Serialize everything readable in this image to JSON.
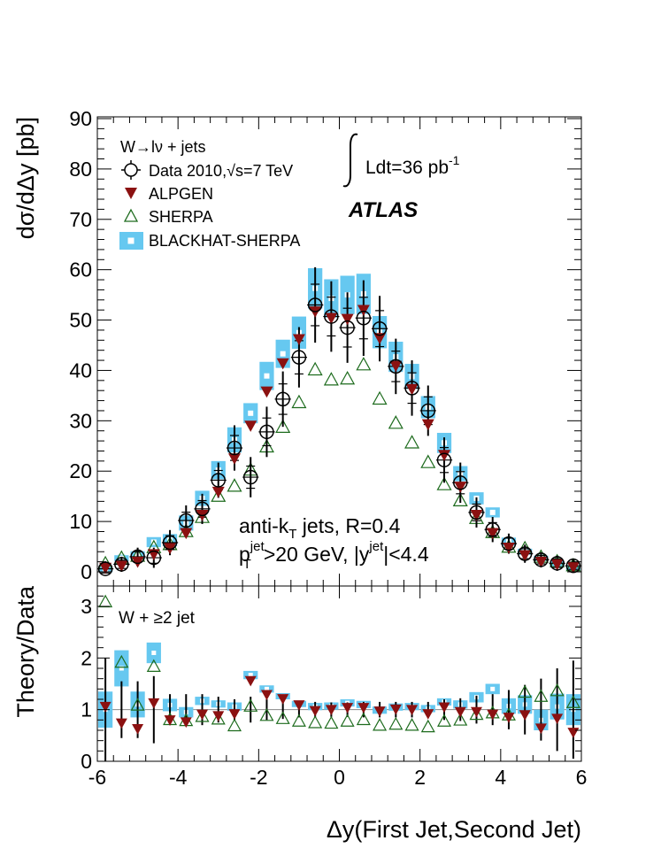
{
  "chart_data": [
    {
      "type": "scatter",
      "panel": "main",
      "ylabel": "dσ/dΔy [pb]",
      "xlim": [
        -6,
        6
      ],
      "ylim": [
        0,
        90
      ],
      "x_ticks": [
        "-6",
        "-4",
        "-2",
        "0",
        "2",
        "4",
        "6"
      ],
      "y_ticks": [
        "0",
        "10",
        "20",
        "30",
        "40",
        "50",
        "60",
        "70",
        "80",
        "90"
      ],
      "x": [
        -5.8,
        -5.4,
        -5.0,
        -4.6,
        -4.2,
        -3.8,
        -3.4,
        -3.0,
        -2.6,
        -2.2,
        -1.8,
        -1.4,
        -1.0,
        -0.6,
        -0.2,
        0.2,
        0.6,
        1.0,
        1.4,
        1.8,
        2.2,
        2.6,
        3.0,
        3.4,
        3.8,
        4.2,
        4.6,
        5.0,
        5.4,
        5.8
      ],
      "series": [
        {
          "name": "Data 2010,√s=7 TeV",
          "marker": "open-circle",
          "color": "#000000",
          "values": [
            0.6,
            1.5,
            3.0,
            2.8,
            5.8,
            10.2,
            12.5,
            18.2,
            24.6,
            18.8,
            27.8,
            34.3,
            42.6,
            53.0,
            50.7,
            48.5,
            50.4,
            48.3,
            40.8,
            36.5,
            32.0,
            22.2,
            17.7,
            11.8,
            8.4,
            5.6,
            3.6,
            2.4,
            1.7,
            1.2
          ],
          "errors": [
            1.5,
            1.5,
            1.8,
            2.0,
            2.5,
            3.0,
            3.0,
            3.5,
            4.5,
            4.0,
            5.0,
            5.5,
            6.0,
            7.5,
            7.0,
            7.0,
            7.5,
            6.5,
            5.5,
            5.5,
            5.0,
            4.5,
            4.0,
            3.0,
            2.5,
            2.0,
            1.8,
            1.5,
            1.5,
            1.3
          ]
        },
        {
          "name": "ALPGEN",
          "marker": "filled-triangle-down",
          "color": "#8b1111",
          "values": [
            0.7,
            1.1,
            1.9,
            3.4,
            4.6,
            7.6,
            11.2,
            15.8,
            22.4,
            28.9,
            35.7,
            41.3,
            46.1,
            51.6,
            50.3,
            50.1,
            51.9,
            46.3,
            40.8,
            36.2,
            29.2,
            23.1,
            16.8,
            11.2,
            7.6,
            4.7,
            3.2,
            1.9,
            1.4,
            0.8
          ]
        },
        {
          "name": "SHERPA",
          "marker": "open-triangle-up",
          "color": "#1d6b1d",
          "values": [
            1.8,
            2.9,
            3.3,
            5.0,
            5.6,
            8.2,
            11.0,
            15.2,
            17.2,
            20.4,
            25.0,
            28.9,
            33.8,
            40.3,
            38.3,
            38.5,
            41.3,
            34.5,
            29.7,
            25.8,
            21.9,
            17.5,
            14.3,
            10.8,
            8.0,
            5.1,
            4.8,
            3.1,
            2.2,
            1.4
          ]
        },
        {
          "name": "BLACKHAT-SHERPA",
          "marker": "open-square-band",
          "color": "#66c8f0",
          "values": [
            0.6,
            2.7,
            3.3,
            5.9,
            6.3,
            9.7,
            14.6,
            20.2,
            26.2,
            31.5,
            38.9,
            43.3,
            47.5,
            56.3,
            54.3,
            55.0,
            55.2,
            47.6,
            42.7,
            38.8,
            32.7,
            25.6,
            19.5,
            14.6,
            11.8,
            6.0,
            4.0,
            2.7,
            1.8,
            1.0
          ],
          "errors": [
            0.4,
            0.6,
            0.8,
            1.0,
            1.2,
            1.5,
            1.5,
            1.8,
            2.5,
            2.0,
            2.8,
            2.8,
            3.2,
            4.0,
            3.8,
            3.8,
            4.0,
            3.2,
            3.0,
            2.5,
            2.2,
            2.0,
            1.5,
            1.2,
            1.0,
            0.8,
            0.6,
            0.5,
            0.4,
            0.3
          ]
        }
      ],
      "legend_title": "W→lν + jets",
      "legend_placement": "top-left",
      "annotations": {
        "luminosity": "Ldt=36 pb",
        "luminosity_sup": "-1",
        "experiment": "ATLAS",
        "jets_line1": "anti-k",
        "jets_line1_sub": "T",
        "jets_line1_end": " jets, R=0.4",
        "jets_line2_p": "p",
        "jets_line2_sup": "jet",
        "jets_line2_sub": "T",
        "jets_line2_mid": ">20 GeV, |y",
        "jets_line2_sup2": "jet",
        "jets_line2_end": "|<4.4"
      }
    },
    {
      "type": "scatter",
      "panel": "ratio",
      "ylabel": "Theory/Data",
      "xlabel": "Δy(First Jet,Second Jet)",
      "xlim": [
        -6,
        6
      ],
      "ylim": [
        0,
        3.5
      ],
      "x_ticks": [
        "-6",
        "-4",
        "-2",
        "0",
        "2",
        "4",
        "6"
      ],
      "y_ticks": [
        "0",
        "1",
        "2",
        "3"
      ],
      "label": "W + ≥2 jet",
      "x": [
        -5.8,
        -5.4,
        -5.0,
        -4.6,
        -4.2,
        -3.8,
        -3.4,
        -3.0,
        -2.6,
        -2.2,
        -1.8,
        -1.4,
        -1.0,
        -0.6,
        -0.2,
        0.2,
        0.6,
        1.0,
        1.4,
        1.8,
        2.2,
        2.6,
        3.0,
        3.4,
        3.8,
        4.2,
        4.6,
        5.0,
        5.4,
        5.8
      ],
      "data_errors": [
        1.0,
        0.55,
        0.55,
        0.65,
        0.3,
        0.3,
        0.3,
        0.25,
        0.2,
        0.25,
        0.2,
        0.18,
        0.15,
        0.15,
        0.14,
        0.14,
        0.15,
        0.15,
        0.15,
        0.15,
        0.15,
        0.2,
        0.22,
        0.27,
        0.3,
        0.38,
        0.48,
        0.6,
        0.8,
        0.95
      ],
      "series": [
        {
          "name": "ALPGEN",
          "values": [
            1.05,
            0.73,
            0.62,
            1.12,
            0.79,
            0.75,
            0.9,
            0.87,
            0.91,
            1.55,
            1.28,
            1.2,
            1.08,
            0.97,
            0.99,
            1.03,
            1.03,
            0.96,
            1.0,
            0.99,
            0.91,
            1.04,
            0.95,
            0.95,
            0.9,
            0.84,
            0.89,
            0.63,
            0.82,
            0.55
          ]
        },
        {
          "name": "SHERPA",
          "values": [
            3.1,
            1.93,
            1.1,
            1.85,
            0.82,
            0.8,
            0.88,
            0.83,
            0.7,
            1.08,
            0.9,
            0.84,
            0.79,
            0.76,
            0.75,
            0.79,
            0.82,
            0.71,
            0.73,
            0.71,
            0.68,
            0.79,
            0.81,
            0.92,
            0.95,
            0.91,
            1.35,
            1.27,
            1.38,
            1.15
          ]
        },
        {
          "name": "BLACKHAT-SHERPA",
          "values": [
            1.0,
            1.8,
            1.1,
            2.1,
            1.09,
            0.95,
            1.17,
            1.11,
            1.06,
            1.67,
            1.4,
            1.26,
            1.11,
            1.06,
            1.07,
            1.13,
            1.1,
            0.99,
            1.05,
            1.06,
            1.02,
            1.15,
            1.1,
            1.24,
            1.4,
            1.07,
            1.1,
            0.8,
            1.06,
            1.0
          ],
          "errors": [
            0.35,
            0.35,
            0.25,
            0.2,
            0.12,
            0.1,
            0.08,
            0.07,
            0.08,
            0.08,
            0.07,
            0.06,
            0.06,
            0.07,
            0.07,
            0.07,
            0.07,
            0.07,
            0.07,
            0.07,
            0.07,
            0.07,
            0.08,
            0.1,
            0.1,
            0.15,
            0.18,
            0.2,
            0.25,
            0.3
          ]
        }
      ]
    }
  ]
}
